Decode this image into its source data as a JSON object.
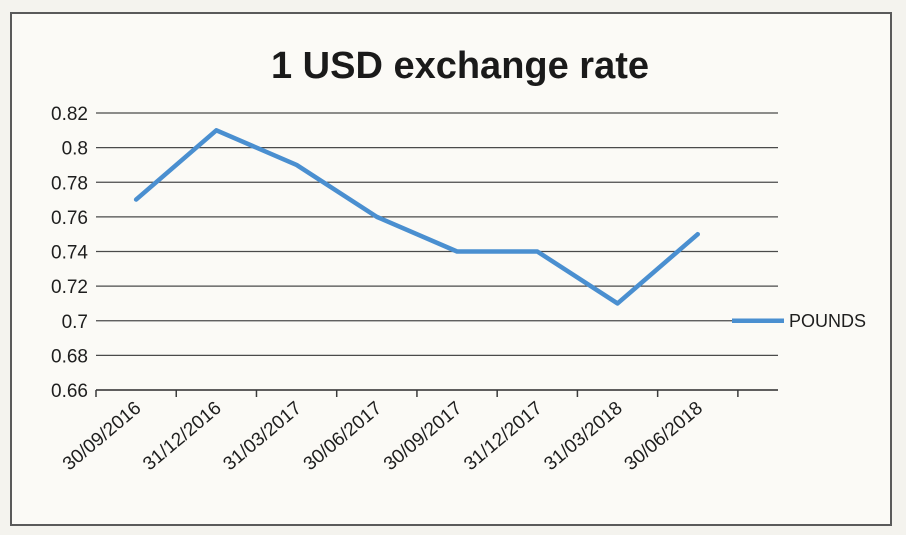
{
  "chart_data": {
    "type": "line",
    "title": "1 USD exchange rate",
    "xlabel": "",
    "ylabel": "",
    "categories": [
      "30/09/2016",
      "31/12/2016",
      "31/03/2017",
      "30/06/2017",
      "30/09/2017",
      "31/12/2017",
      "31/03/2018",
      "30/06/2018"
    ],
    "series": [
      {
        "name": "POUNDS",
        "values": [
          0.77,
          0.81,
          0.79,
          0.76,
          0.74,
          0.74,
          0.71,
          0.75
        ]
      }
    ],
    "ylim": [
      0.66,
      0.82
    ],
    "yticks": [
      "0.82",
      "0.8",
      "0.78",
      "0.76",
      "0.74",
      "0.72",
      "0.7",
      "0.68",
      "0.66"
    ],
    "grid": true,
    "legend_position": "right",
    "line_color": "#4a8fd0"
  }
}
